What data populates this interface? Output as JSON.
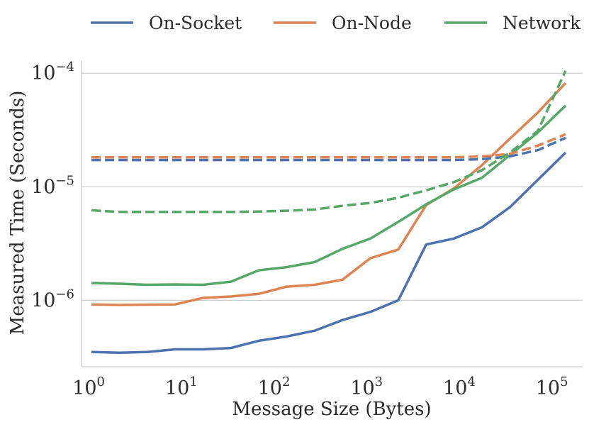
{
  "chart_data": {
    "type": "line",
    "title": "",
    "xlabel": "Message Size (Bytes)",
    "ylabel": "Measured Time (Seconds)",
    "xscale": "log",
    "yscale": "log",
    "xlim": [
      0.78,
      200000
    ],
    "ylim": [
      2.6e-07,
      0.00013
    ],
    "legend_position": "top",
    "grid": "horizontal",
    "x": [
      1,
      2,
      4,
      8,
      16,
      32,
      64,
      128,
      256,
      512,
      1024,
      2048,
      4096,
      8192,
      16384,
      32768,
      65536,
      131072
    ],
    "x_ticks": [
      {
        "value": 1,
        "base": "10",
        "exp": "0"
      },
      {
        "value": 10,
        "base": "10",
        "exp": "1"
      },
      {
        "value": 100,
        "base": "10",
        "exp": "2"
      },
      {
        "value": 1000,
        "base": "10",
        "exp": "3"
      },
      {
        "value": 10000,
        "base": "10",
        "exp": "4"
      },
      {
        "value": 100000,
        "base": "10",
        "exp": "5"
      }
    ],
    "y_ticks": [
      {
        "value": 1e-06,
        "base": "10",
        "exp": "−6"
      },
      {
        "value": 1e-05,
        "base": "10",
        "exp": "−5"
      },
      {
        "value": 0.0001,
        "base": "10",
        "exp": "−4"
      }
    ],
    "legend": [
      {
        "label": "On-Socket",
        "color": "#4c72b0"
      },
      {
        "label": "On-Node",
        "color": "#dd8452"
      },
      {
        "label": "Network",
        "color": "#55a868"
      }
    ],
    "series": [
      {
        "name": "On-Socket",
        "style": "solid",
        "color": "#4c72b0",
        "values": [
          3.5e-07,
          3.45e-07,
          3.5e-07,
          3.7e-07,
          3.7e-07,
          3.8e-07,
          4.4e-07,
          4.8e-07,
          5.4e-07,
          6.7e-07,
          7.9e-07,
          1e-06,
          3.1e-06,
          3.5e-06,
          4.4e-06,
          6.6e-06,
          1.15e-05,
          2e-05
        ]
      },
      {
        "name": "On-Node",
        "style": "solid",
        "color": "#dd8452",
        "values": [
          9.2e-07,
          9.1e-07,
          9.15e-07,
          9.2e-07,
          1.05e-06,
          1.08e-06,
          1.14e-06,
          1.32e-06,
          1.37e-06,
          1.52e-06,
          2.35e-06,
          2.8e-06,
          6.9e-06,
          9.7e-06,
          1.55e-05,
          2.65e-05,
          4.5e-05,
          8.2e-05
        ]
      },
      {
        "name": "Network",
        "style": "solid",
        "color": "#55a868",
        "values": [
          1.42e-06,
          1.4e-06,
          1.37e-06,
          1.38e-06,
          1.37e-06,
          1.46e-06,
          1.84e-06,
          1.96e-06,
          2.17e-06,
          2.84e-06,
          3.5e-06,
          4.9e-06,
          7e-06,
          9.5e-06,
          1.2e-05,
          1.9e-05,
          3e-05,
          5.2e-05
        ]
      },
      {
        "name": "On-Socket (dashed)",
        "style": "dashed",
        "color": "#4c72b0",
        "values": [
          1.72e-05,
          1.72e-05,
          1.72e-05,
          1.72e-05,
          1.72e-05,
          1.72e-05,
          1.72e-05,
          1.72e-05,
          1.72e-05,
          1.72e-05,
          1.72e-05,
          1.72e-05,
          1.72e-05,
          1.72e-05,
          1.75e-05,
          1.85e-05,
          2.1e-05,
          2.7e-05
        ]
      },
      {
        "name": "On-Node (dashed)",
        "style": "dashed",
        "color": "#dd8452",
        "values": [
          1.82e-05,
          1.82e-05,
          1.82e-05,
          1.82e-05,
          1.82e-05,
          1.82e-05,
          1.82e-05,
          1.82e-05,
          1.82e-05,
          1.82e-05,
          1.82e-05,
          1.82e-05,
          1.82e-05,
          1.82e-05,
          1.85e-05,
          1.95e-05,
          2.3e-05,
          2.9e-05
        ]
      },
      {
        "name": "Network (dashed)",
        "style": "dashed",
        "color": "#55a868",
        "values": [
          6.2e-06,
          6e-06,
          6e-06,
          6e-06,
          6e-06,
          6e-06,
          6.05e-06,
          6.15e-06,
          6.3e-06,
          6.8e-06,
          7.2e-06,
          8e-06,
          9.3e-06,
          1.1e-05,
          1.4e-05,
          2e-05,
          3.1e-05,
          0.000105
        ]
      }
    ]
  }
}
